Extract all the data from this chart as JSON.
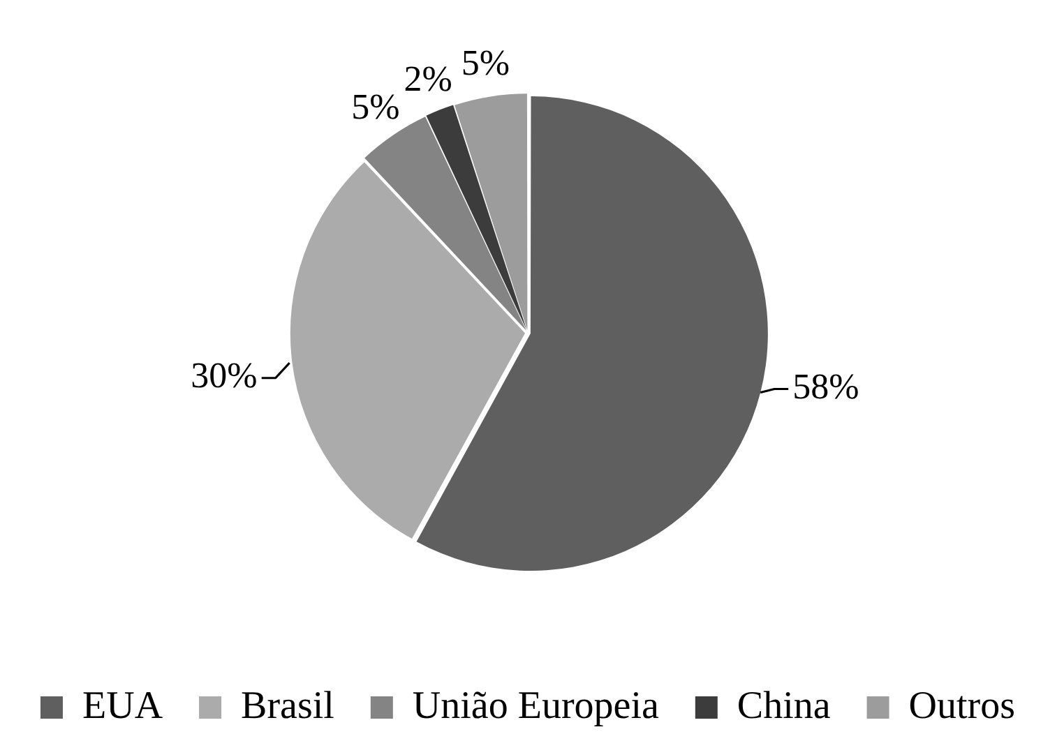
{
  "chart_data": {
    "type": "pie",
    "categories": [
      "EUA",
      "Brasil",
      "União Europeia",
      "China",
      "Outros"
    ],
    "values": [
      58,
      30,
      5,
      2,
      5
    ],
    "colors": [
      "#5f5f5f",
      "#ababab",
      "#848484",
      "#3c3c3c",
      "#9c9c9c"
    ],
    "value_labels": [
      "58%",
      "30%",
      "5%",
      "2%",
      "5%"
    ],
    "legend": "bottom"
  }
}
